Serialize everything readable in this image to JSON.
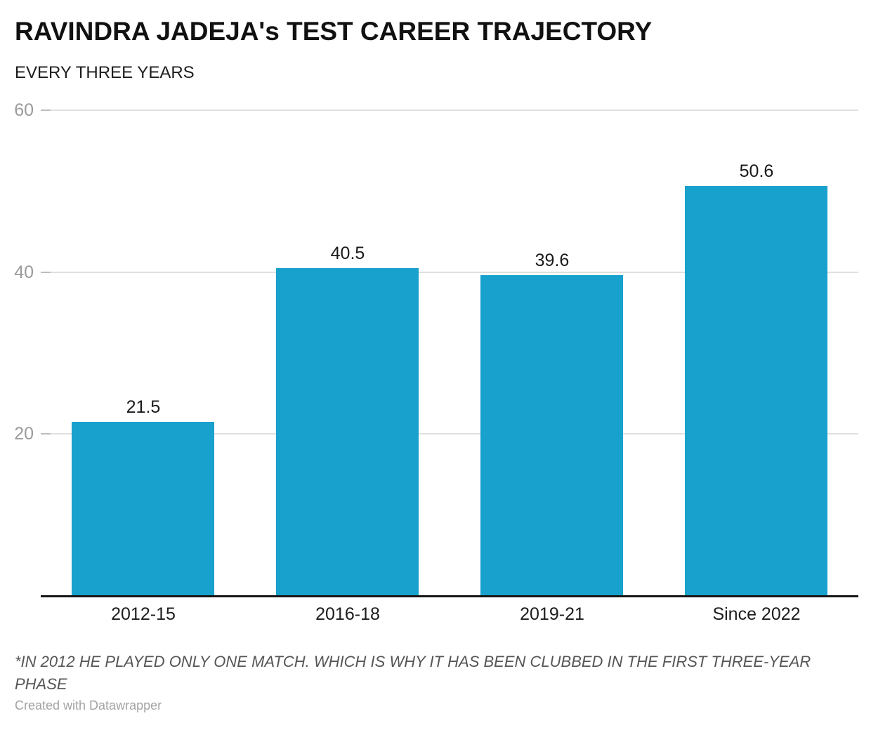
{
  "header": {
    "title": "RAVINDRA JADEJA's TEST CAREER TRAJECTORY",
    "subtitle": "EVERY THREE YEARS"
  },
  "chart_data": {
    "type": "bar",
    "title": "RAVINDRA JADEJA's TEST CAREER TRAJECTORY",
    "subtitle": "EVERY THREE YEARS",
    "categories": [
      "2012-15",
      "2016-18",
      "2019-21",
      "Since 2022"
    ],
    "values": [
      21.5,
      40.5,
      39.6,
      50.6
    ],
    "value_labels": [
      "21.5",
      "40.5",
      "39.6",
      "50.6"
    ],
    "yticks": [
      20,
      40,
      60
    ],
    "ytick_labels": [
      "20",
      "40",
      "60"
    ],
    "ylim": [
      0,
      60
    ],
    "xlabel": "",
    "ylabel": "",
    "grid": "horizontal",
    "legend": "none",
    "bar_color": "#18a1cd"
  },
  "footer": {
    "note": "*IN 2012 HE PLAYED ONLY ONE MATCH. WHICH IS WHY IT HAS BEEN CLUBBED IN THE FIRST THREE-YEAR PHASE",
    "credit": "Created with Datawrapper"
  },
  "colors": {
    "bar": "#18a1cd",
    "grid": "#e0e0e0",
    "tick_mark": "#bdbdbd",
    "tick_label": "#9b9b9b",
    "axis_line": "#161616",
    "title": "#111111",
    "note": "#555555",
    "credit": "#a3a3a3"
  }
}
